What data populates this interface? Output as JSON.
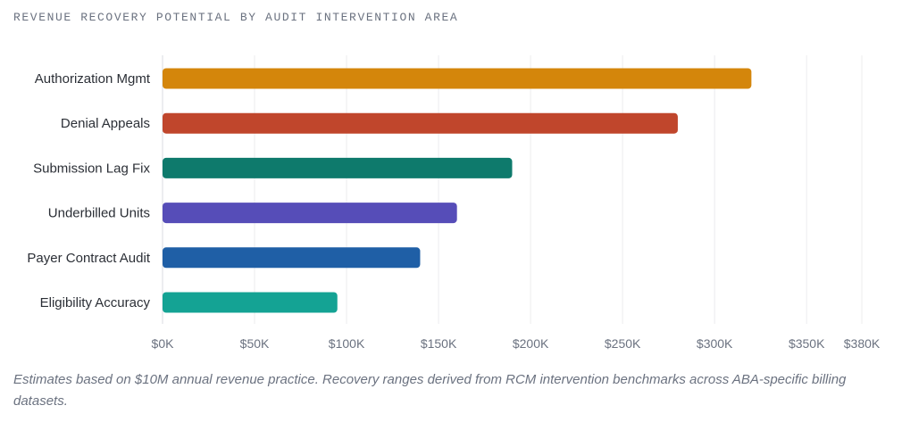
{
  "chart_title": "REVENUE RECOVERY POTENTIAL BY AUDIT INTERVENTION AREA",
  "footnote": "Estimates based on $10M annual revenue practice. Recovery ranges derived from RCM intervention benchmarks across ABA-specific billing datasets.",
  "chart_data": {
    "type": "bar",
    "orientation": "horizontal",
    "title": "REVENUE RECOVERY POTENTIAL BY AUDIT INTERVENTION AREA",
    "xlabel": "",
    "ylabel": "",
    "categories": [
      "Authorization Mgmt",
      "Denial Appeals",
      "Submission Lag Fix",
      "Underbilled Units",
      "Payer Contract Audit",
      "Eligibility Accuracy"
    ],
    "values": [
      320000,
      280000,
      190000,
      160000,
      140000,
      95000
    ],
    "colors": [
      "#d4860b",
      "#c0462c",
      "#0e7a6c",
      "#564db8",
      "#1f5fa6",
      "#14a394"
    ],
    "xlim": [
      0,
      380000
    ],
    "x_ticks": [
      0,
      50000,
      100000,
      150000,
      200000,
      250000,
      300000,
      350000,
      380000
    ],
    "x_tick_labels": [
      "$0K",
      "$50K",
      "$100K",
      "$150K",
      "$200K",
      "$250K",
      "$300K",
      "$350K",
      "$380K"
    ],
    "grid": true
  }
}
